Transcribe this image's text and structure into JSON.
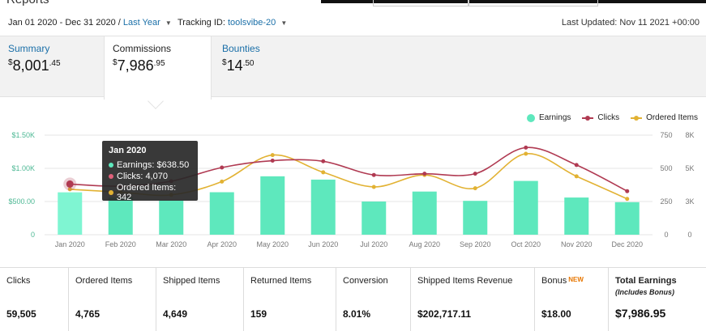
{
  "page": {
    "heading": "Reports"
  },
  "filters": {
    "date_range": "Jan 01 2020 - Dec 31 2020",
    "separator": "/",
    "period_label": "Last Year",
    "tracking_label": "Tracking ID:",
    "tracking_value": "toolsvibe-20",
    "last_updated": "Last Updated: Nov 11 2021 +00:00"
  },
  "tabs": [
    {
      "label": "Summary",
      "currency": "$",
      "whole": "8,001",
      "cents": ".45"
    },
    {
      "label": "Commissions",
      "currency": "$",
      "whole": "7,986",
      "cents": ".95"
    },
    {
      "label": "Bounties",
      "currency": "$",
      "whole": "14",
      "cents": ".50"
    }
  ],
  "legend": {
    "earnings": "Earnings",
    "clicks": "Clicks",
    "ordered_items": "Ordered Items"
  },
  "tooltip": {
    "title": "Jan 2020",
    "earnings": "Earnings: $638.50",
    "clicks": "Clicks: 4,070",
    "ordered_items": "Ordered Items: 342"
  },
  "colors": {
    "earnings": "#5ee8bd",
    "clicks": "#b03a52",
    "ordered_items": "#e2b233",
    "link": "#1a6fa8"
  },
  "chart_data": {
    "type": "bar",
    "categories": [
      "Jan 2020",
      "Feb 2020",
      "Mar 2020",
      "Apr 2020",
      "May 2020",
      "Jun 2020",
      "Jul 2020",
      "Aug 2020",
      "Sep 2020",
      "Oct 2020",
      "Nov 2020",
      "Dec 2020"
    ],
    "series": [
      {
        "name": "Earnings",
        "axis": "left",
        "type": "bar",
        "values": [
          638.5,
          560,
          520,
          640,
          880,
          830,
          500,
          650,
          510,
          810,
          560,
          490
        ]
      },
      {
        "name": "Clicks",
        "axis": "right-outer",
        "type": "line",
        "values": [
          4070,
          3900,
          4300,
          5400,
          5950,
          5900,
          4800,
          4900,
          4900,
          7000,
          5600,
          3500
        ]
      },
      {
        "name": "Ordered Items",
        "axis": "right-inner",
        "type": "line",
        "values": [
          342,
          320,
          300,
          400,
          600,
          470,
          360,
          450,
          350,
          610,
          440,
          270
        ]
      }
    ],
    "left_axis": {
      "ticks": [
        "0",
        "$500.00",
        "$1.00K",
        "$1.50K"
      ],
      "range": [
        0,
        1500
      ]
    },
    "right_outer_axis": {
      "ticks": [
        "0",
        "3K",
        "5K",
        "8K"
      ],
      "range": [
        0,
        8000
      ]
    },
    "right_inner_axis": {
      "ticks": [
        "0",
        "250",
        "500",
        "750"
      ],
      "range": [
        0,
        750
      ]
    },
    "grid": true,
    "legend": "top-right"
  },
  "metrics": [
    {
      "label": "Clicks",
      "value": "59,505"
    },
    {
      "label": "Ordered Items",
      "value": "4,765"
    },
    {
      "label": "Shipped Items",
      "value": "4,649"
    },
    {
      "label": "Returned Items",
      "value": "159"
    },
    {
      "label": "Conversion",
      "value": "8.01%"
    },
    {
      "label": "Shipped Items Revenue",
      "value": "$202,717.11"
    },
    {
      "label": "Bonus",
      "badge": "NEW",
      "value": "$18.00"
    },
    {
      "label": "Total Earnings",
      "sub": "(Includes Bonus)",
      "value": "$7,986.95"
    }
  ]
}
